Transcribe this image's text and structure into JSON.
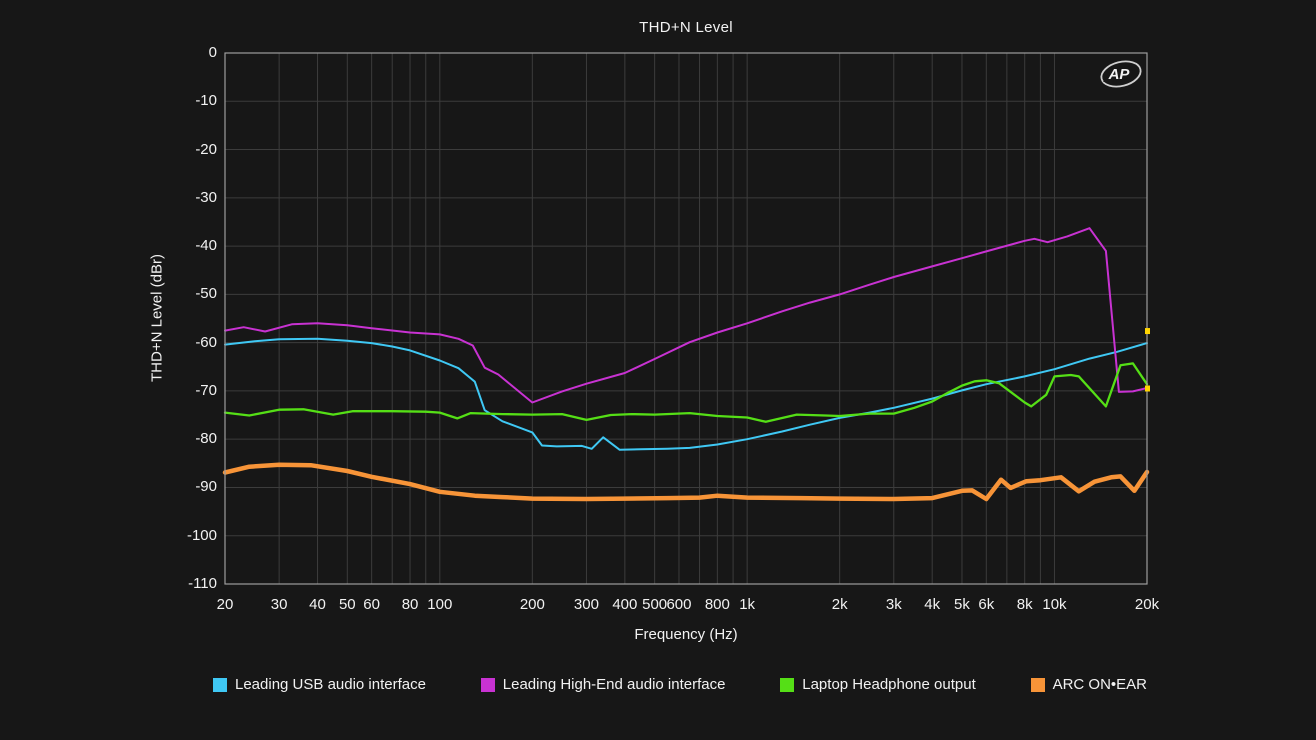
{
  "title": "THD+N Level",
  "watermark_logo": "AP",
  "colors": {
    "background": "#171717",
    "grid": "#3c3c3c",
    "border": "#9d9d9d",
    "text": "#f2f2f2",
    "cursor_marker": "#ffd400"
  },
  "axes": {
    "y": {
      "label": "THD+N Level (dBr)",
      "ticks": [
        0,
        -10,
        -20,
        -30,
        -40,
        -50,
        -60,
        -70,
        -80,
        -90,
        -100,
        -110
      ]
    },
    "x": {
      "label": "Frequency (Hz)",
      "gridlines": [
        20,
        30,
        40,
        50,
        60,
        70,
        80,
        90,
        100,
        200,
        300,
        400,
        500,
        600,
        700,
        800,
        900,
        1000,
        2000,
        3000,
        4000,
        5000,
        6000,
        7000,
        8000,
        9000,
        10000,
        20000
      ],
      "tick_labels": [
        {
          "f": 20,
          "label": "20"
        },
        {
          "f": 30,
          "label": "30"
        },
        {
          "f": 40,
          "label": "40"
        },
        {
          "f": 50,
          "label": "50"
        },
        {
          "f": 60,
          "label": "60"
        },
        {
          "f": 80,
          "label": "80"
        },
        {
          "f": 100,
          "label": "100"
        },
        {
          "f": 200,
          "label": "200"
        },
        {
          "f": 300,
          "label": "300"
        },
        {
          "f": 400,
          "label": "400"
        },
        {
          "f": 500,
          "label": "500"
        },
        {
          "f": 600,
          "label": "600"
        },
        {
          "f": 800,
          "label": "800"
        },
        {
          "f": 1000,
          "label": "1k"
        },
        {
          "f": 2000,
          "label": "2k"
        },
        {
          "f": 3000,
          "label": "3k"
        },
        {
          "f": 4000,
          "label": "4k"
        },
        {
          "f": 5000,
          "label": "5k"
        },
        {
          "f": 6000,
          "label": "6k"
        },
        {
          "f": 8000,
          "label": "8k"
        },
        {
          "f": 10000,
          "label": "10k"
        },
        {
          "f": 20000,
          "label": "20k"
        }
      ]
    }
  },
  "cursor_markers": [
    {
      "dBr": -57.6
    },
    {
      "dBr": -69.5
    }
  ],
  "chart_data": {
    "type": "line",
    "title": "THD+N Level",
    "xlabel": "Frequency (Hz)",
    "ylabel": "THD+N Level (dBr)",
    "x_scale": "log",
    "xlim": [
      20,
      20000
    ],
    "ylim": [
      -110,
      0
    ],
    "grid": true,
    "legend_position": "bottom",
    "series": [
      {
        "name": "Leading USB audio interface",
        "color": "#3fc8f4",
        "width": 2,
        "points": [
          [
            20,
            -60.4
          ],
          [
            25,
            -59.7
          ],
          [
            30,
            -59.3
          ],
          [
            40,
            -59.2
          ],
          [
            50,
            -59.6
          ],
          [
            60,
            -60.1
          ],
          [
            70,
            -60.8
          ],
          [
            80,
            -61.6
          ],
          [
            100,
            -63.7
          ],
          [
            115,
            -65.3
          ],
          [
            125,
            -67.2
          ],
          [
            130,
            -68.1
          ],
          [
            140,
            -74.0
          ],
          [
            160,
            -76.3
          ],
          [
            200,
            -78.6
          ],
          [
            215,
            -81.3
          ],
          [
            240,
            -81.5
          ],
          [
            290,
            -81.4
          ],
          [
            312,
            -82.0
          ],
          [
            340,
            -79.6
          ],
          [
            385,
            -82.2
          ],
          [
            450,
            -82.1
          ],
          [
            550,
            -82.0
          ],
          [
            650,
            -81.8
          ],
          [
            800,
            -81.1
          ],
          [
            1000,
            -80.0
          ],
          [
            1300,
            -78.4
          ],
          [
            1600,
            -77.0
          ],
          [
            2000,
            -75.6
          ],
          [
            2500,
            -74.5
          ],
          [
            3000,
            -73.5
          ],
          [
            4000,
            -71.6
          ],
          [
            5000,
            -69.9
          ],
          [
            6000,
            -68.6
          ],
          [
            8000,
            -67.0
          ],
          [
            10000,
            -65.5
          ],
          [
            13000,
            -63.3
          ],
          [
            16000,
            -61.9
          ],
          [
            20000,
            -60.1
          ]
        ]
      },
      {
        "name": "Leading High-End audio interface",
        "color": "#c832d2",
        "width": 2,
        "points": [
          [
            20,
            -57.5
          ],
          [
            23,
            -56.8
          ],
          [
            27,
            -57.7
          ],
          [
            33,
            -56.2
          ],
          [
            40,
            -56.0
          ],
          [
            50,
            -56.4
          ],
          [
            60,
            -57.0
          ],
          [
            80,
            -57.9
          ],
          [
            100,
            -58.3
          ],
          [
            115,
            -59.2
          ],
          [
            128,
            -60.6
          ],
          [
            140,
            -65.2
          ],
          [
            155,
            -66.6
          ],
          [
            200,
            -72.4
          ],
          [
            250,
            -70.1
          ],
          [
            300,
            -68.5
          ],
          [
            400,
            -66.3
          ],
          [
            500,
            -63.4
          ],
          [
            650,
            -59.9
          ],
          [
            800,
            -57.9
          ],
          [
            1000,
            -56.0
          ],
          [
            1300,
            -53.5
          ],
          [
            1600,
            -51.7
          ],
          [
            2000,
            -50.0
          ],
          [
            2500,
            -48.0
          ],
          [
            3000,
            -46.4
          ],
          [
            4000,
            -44.2
          ],
          [
            5000,
            -42.5
          ],
          [
            6000,
            -41.1
          ],
          [
            8000,
            -38.9
          ],
          [
            8600,
            -38.5
          ],
          [
            9500,
            -39.2
          ],
          [
            11000,
            -38.0
          ],
          [
            13000,
            -36.3
          ],
          [
            14700,
            -41.0
          ],
          [
            16200,
            -70.2
          ],
          [
            18000,
            -70.1
          ],
          [
            20000,
            -69.4
          ]
        ]
      },
      {
        "name": "Laptop Headphone output",
        "color": "#55df16",
        "width": 2.3,
        "points": [
          [
            20,
            -74.5
          ],
          [
            24,
            -75.1
          ],
          [
            30,
            -73.9
          ],
          [
            36,
            -73.8
          ],
          [
            45,
            -74.9
          ],
          [
            52,
            -74.2
          ],
          [
            70,
            -74.2
          ],
          [
            90,
            -74.3
          ],
          [
            100,
            -74.5
          ],
          [
            114,
            -75.7
          ],
          [
            126,
            -74.6
          ],
          [
            160,
            -74.8
          ],
          [
            200,
            -74.9
          ],
          [
            250,
            -74.8
          ],
          [
            300,
            -76.0
          ],
          [
            360,
            -75.0
          ],
          [
            420,
            -74.8
          ],
          [
            500,
            -74.9
          ],
          [
            650,
            -74.6
          ],
          [
            800,
            -75.2
          ],
          [
            1000,
            -75.5
          ],
          [
            1150,
            -76.4
          ],
          [
            1450,
            -74.9
          ],
          [
            1800,
            -75.1
          ],
          [
            2000,
            -75.2
          ],
          [
            2500,
            -74.7
          ],
          [
            3000,
            -74.7
          ],
          [
            3500,
            -73.5
          ],
          [
            4000,
            -72.2
          ],
          [
            4500,
            -70.4
          ],
          [
            5000,
            -68.9
          ],
          [
            5500,
            -68.0
          ],
          [
            6000,
            -67.8
          ],
          [
            6600,
            -68.4
          ],
          [
            8000,
            -72.4
          ],
          [
            8400,
            -73.2
          ],
          [
            9400,
            -70.8
          ],
          [
            10000,
            -67.0
          ],
          [
            11300,
            -66.7
          ],
          [
            12000,
            -67.0
          ],
          [
            14700,
            -73.2
          ],
          [
            16400,
            -64.7
          ],
          [
            18000,
            -64.3
          ],
          [
            20000,
            -68.6
          ]
        ]
      },
      {
        "name": "ARC ON•EAR",
        "color": "#f79438",
        "width": 4.5,
        "points": [
          [
            20,
            -86.9
          ],
          [
            24,
            -85.7
          ],
          [
            30,
            -85.3
          ],
          [
            38,
            -85.4
          ],
          [
            50,
            -86.6
          ],
          [
            60,
            -87.8
          ],
          [
            80,
            -89.3
          ],
          [
            100,
            -90.9
          ],
          [
            130,
            -91.7
          ],
          [
            160,
            -92.0
          ],
          [
            200,
            -92.3
          ],
          [
            300,
            -92.4
          ],
          [
            400,
            -92.3
          ],
          [
            550,
            -92.2
          ],
          [
            700,
            -92.1
          ],
          [
            800,
            -91.7
          ],
          [
            1000,
            -92.1
          ],
          [
            1500,
            -92.2
          ],
          [
            2000,
            -92.3
          ],
          [
            3000,
            -92.4
          ],
          [
            4000,
            -92.2
          ],
          [
            5000,
            -90.7
          ],
          [
            5400,
            -90.6
          ],
          [
            6000,
            -92.4
          ],
          [
            6700,
            -88.4
          ],
          [
            7200,
            -90.1
          ],
          [
            8100,
            -88.7
          ],
          [
            9000,
            -88.5
          ],
          [
            10500,
            -87.9
          ],
          [
            12000,
            -90.8
          ],
          [
            13500,
            -88.8
          ],
          [
            15300,
            -87.9
          ],
          [
            16400,
            -87.7
          ],
          [
            18200,
            -90.7
          ],
          [
            20000,
            -86.8
          ]
        ]
      }
    ]
  }
}
